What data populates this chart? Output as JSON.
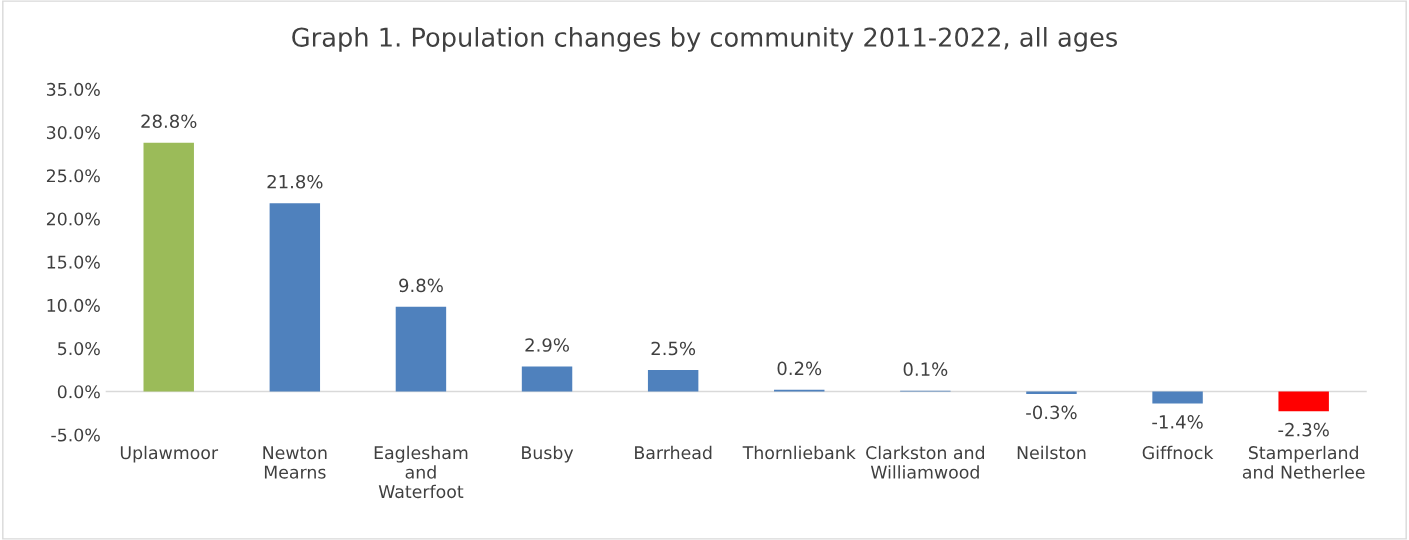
{
  "chart_data": {
    "type": "bar",
    "title": "Graph 1. Population changes by community 2011-2022, all ages",
    "categories": [
      "Uplawmoor",
      "Newton\nMearns",
      "Eaglesham\nand\nWaterfoot",
      "Busby",
      "Barrhead",
      "Thornliebank",
      "Clarkston and\nWilliamwood",
      "Neilston",
      "Giffnock",
      "Stamperland\nand Netherlee"
    ],
    "values": [
      28.8,
      21.8,
      9.8,
      2.9,
      2.5,
      0.2,
      0.1,
      -0.3,
      -1.4,
      -2.3
    ],
    "colors": [
      "#9bbb59",
      "#4f81bd",
      "#4f81bd",
      "#4f81bd",
      "#4f81bd",
      "#4f81bd",
      "#4f81bd",
      "#4f81bd",
      "#4f81bd",
      "#ff0000"
    ],
    "value_labels": [
      "28.8%",
      "21.8%",
      "9.8%",
      "2.9%",
      "2.5%",
      "0.2%",
      "0.1%",
      "-0.3%",
      "-1.4%",
      "-2.3%"
    ],
    "ylim": [
      -5,
      35
    ],
    "yticks": [
      {
        "value": -5,
        "label": "-5.0%"
      },
      {
        "value": 0,
        "label": "0.0%"
      },
      {
        "value": 5,
        "label": "5.0%"
      },
      {
        "value": 10,
        "label": "10.0%"
      },
      {
        "value": 15,
        "label": "15.0%"
      },
      {
        "value": 20,
        "label": "20.0%"
      },
      {
        "value": 25,
        "label": "25.0%"
      },
      {
        "value": 30,
        "label": "30.0%"
      },
      {
        "value": 35,
        "label": "35.0%"
      }
    ],
    "ref_lines": [
      {
        "axis": "y",
        "value": 0,
        "color": "#d9d9d9"
      }
    ]
  }
}
